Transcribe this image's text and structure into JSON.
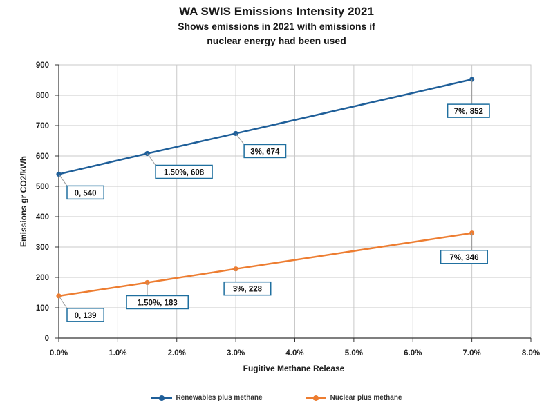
{
  "chart_data": {
    "type": "line",
    "title": "WA SWIS Emissions Intensity 2021",
    "subtitle_lines": [
      "Shows emissions in 2021 with emissions if",
      "nuclear energy had been used"
    ],
    "xlabel": "Fugitive Methane Release",
    "ylabel": "Emissions gr CO2/kWh",
    "xlim": [
      0,
      0.08
    ],
    "ylim": [
      0,
      900
    ],
    "x_ticks": [
      0,
      0.01,
      0.02,
      0.03,
      0.04,
      0.05,
      0.06,
      0.07,
      0.08
    ],
    "x_tick_labels": [
      "0.0%",
      "1.0%",
      "2.0%",
      "3.0%",
      "4.0%",
      "5.0%",
      "6.0%",
      "7.0%",
      "8.0%"
    ],
    "y_ticks": [
      0,
      100,
      200,
      300,
      400,
      500,
      600,
      700,
      800,
      900
    ],
    "y_tick_labels": [
      "0",
      "100",
      "200",
      "300",
      "400",
      "500",
      "600",
      "700",
      "800",
      "900"
    ],
    "grid": true,
    "legend_position": "bottom",
    "series": [
      {
        "name": "Renewables plus methane",
        "color": "#1f5f99",
        "x": [
          0,
          0.015,
          0.03,
          0.07
        ],
        "values": [
          540,
          608,
          674,
          852
        ],
        "data_labels": [
          "0, 540",
          "1.50%, 608",
          "3%, 674",
          "7%, 852"
        ]
      },
      {
        "name": "Nuclear plus methane",
        "color": "#ed7d31",
        "x": [
          0,
          0.015,
          0.03,
          0.07
        ],
        "values": [
          139,
          183,
          228,
          346
        ],
        "data_labels": [
          "0, 139",
          "1.50%,  183",
          "3%,  228",
          "7%,  346"
        ]
      }
    ]
  }
}
